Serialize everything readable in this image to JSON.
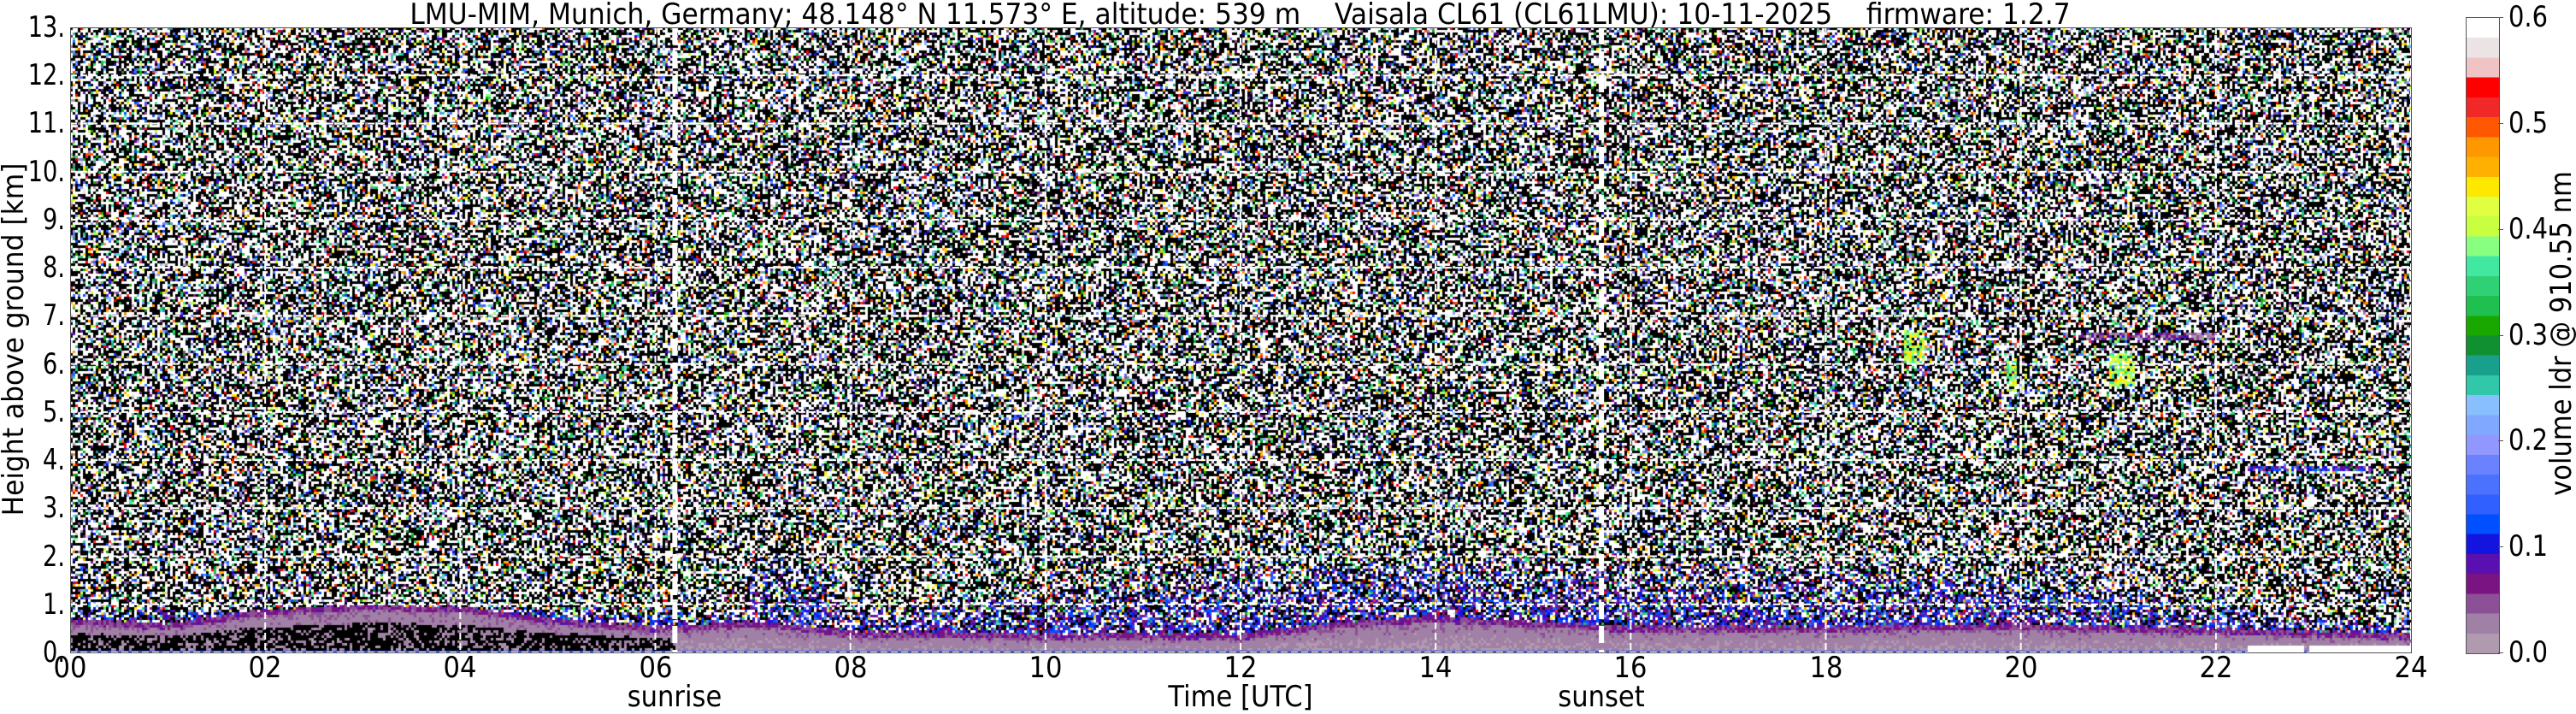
{
  "title": "LMU-MIM, Munich, Germany; 48.148° N 11.573° E, altitude: 539 m    Vaisala CL61 (CL61LMU): 10-11-2025    firmware: 1.2.7",
  "chart_data": {
    "type": "heatmap",
    "title": "LMU-MIM, Munich, Germany; 48.148° N 11.573° E, altitude: 539 m    Vaisala CL61 (CL61LMU): 10-11-2025    firmware: 1.2.7",
    "xlabel": "Time [UTC]",
    "ylabel": "Height above ground [km]",
    "xlim": [
      0,
      24
    ],
    "ylim": [
      0,
      13
    ],
    "x_ticks": [
      0,
      2,
      4,
      6,
      8,
      10,
      12,
      14,
      16,
      18,
      20,
      22,
      24
    ],
    "x_tick_labels": [
      "00",
      "02",
      "04",
      "06",
      "08",
      "10",
      "12",
      "14",
      "16",
      "18",
      "20",
      "22",
      "24"
    ],
    "y_ticks": [
      0,
      1,
      2,
      3,
      4,
      5,
      6,
      7,
      8,
      9,
      10,
      11,
      12,
      13
    ],
    "y_tick_labels": [
      "0.",
      "1.",
      "2.",
      "3.",
      "4.",
      "5.",
      "6.",
      "7.",
      "8.",
      "9.",
      "10.",
      "11.",
      "12.",
      "13."
    ],
    "grid": true,
    "annotations": [
      {
        "label": "sunrise",
        "time": 6.2
      },
      {
        "label": "sunset",
        "time": 15.7
      }
    ],
    "colorbar": {
      "label": "volume ldr @ 910.55 nm",
      "range": [
        0.0,
        0.6
      ],
      "ticks": [
        0.0,
        0.1,
        0.2,
        0.3,
        0.4,
        0.5,
        0.6
      ],
      "tick_labels": [
        "0.0",
        "0.1",
        "0.2",
        "0.3",
        "0.4",
        "0.5",
        "0.6"
      ],
      "colors": [
        "#b09ab0",
        "#a080a4",
        "#8c5096",
        "#7a1482",
        "#5a10b0",
        "#1414e0",
        "#0050ff",
        "#3060ff",
        "#4a72ff",
        "#6a82ff",
        "#9098ff",
        "#80a8ff",
        "#88c0ff",
        "#30c8a8",
        "#18a08c",
        "#109030",
        "#18a800",
        "#20c050",
        "#30d074",
        "#40e8a0",
        "#88ff80",
        "#c8ff40",
        "#e0ff40",
        "#ffe800",
        "#ffb000",
        "#ff9800",
        "#ff5800",
        "#f02828",
        "#ff0000",
        "#f0c4c4",
        "#ece4e4",
        "#ffffff"
      ]
    },
    "boundary_layer_top_km": {
      "time": [
        0,
        1,
        2,
        3,
        4,
        5,
        6,
        7,
        8,
        10,
        12,
        13,
        14,
        15,
        16,
        18,
        20,
        22,
        24
      ],
      "height": [
        0.6,
        0.5,
        0.8,
        0.9,
        0.85,
        0.6,
        0.45,
        0.55,
        0.35,
        0.3,
        0.3,
        0.55,
        0.65,
        0.55,
        0.45,
        0.45,
        0.5,
        0.4,
        0.3
      ]
    },
    "aerosol_layer_top_km": {
      "time": [
        0,
        6.9,
        7.1,
        7.8,
        8,
        12.4,
        14,
        16,
        18,
        20,
        22.3,
        24
      ],
      "height": [
        1.0,
        1.0,
        2.0,
        2.0,
        1.0,
        2.2,
        2.2,
        2.0,
        2.0,
        2.0,
        1.0,
        0.8
      ]
    },
    "elevated_features": [
      {
        "time_start": 18.8,
        "time_end": 19.0,
        "height_km": 6.4,
        "ldr": 0.4
      },
      {
        "time_start": 19.85,
        "time_end": 19.95,
        "height_km": 5.8,
        "ldr": 0.4
      },
      {
        "time_start": 20.9,
        "time_end": 21.15,
        "height_km": 5.9,
        "ldr": 0.4
      },
      {
        "time_start": 20.6,
        "time_end": 22.0,
        "height_km": 6.6,
        "ldr": 0.05
      },
      {
        "time_start": 22.3,
        "time_end": 23.6,
        "height_km": 3.85,
        "ldr": 0.08
      }
    ]
  }
}
